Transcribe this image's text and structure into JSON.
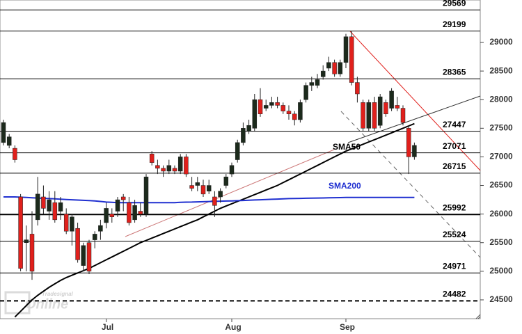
{
  "chart_data": {
    "type": "candlestick",
    "categories": [
      null,
      null,
      null,
      null,
      null,
      null,
      null,
      null,
      null,
      null,
      null,
      null,
      null,
      null,
      null,
      null,
      null,
      null,
      "Jul",
      null,
      null,
      null,
      null,
      null,
      null,
      null,
      null,
      null,
      null,
      null,
      null,
      null,
      null,
      null,
      null,
      null,
      null,
      null,
      null,
      null,
      "Aug",
      null,
      null,
      null,
      null,
      null,
      null,
      null,
      null,
      null,
      null,
      null,
      null,
      null,
      null,
      null,
      null,
      null,
      null,
      null,
      "Sep",
      null,
      null,
      null,
      null,
      null,
      null,
      null,
      null,
      null,
      null,
      null,
      null
    ],
    "open": [
      27250,
      27200,
      27150,
      26300,
      25500,
      25650,
      25900,
      26300,
      26050,
      26200,
      26050,
      26000,
      25700,
      25750,
      25100,
      25500,
      25550,
      25700,
      25850,
      26000,
      26050,
      26300,
      26200,
      25900,
      26050,
      26000,
      27050,
      26850,
      26800,
      26750,
      26800,
      26750,
      27000,
      26500,
      26500,
      26500,
      26400,
      26300,
      26300,
      26500,
      26700,
      26950,
      27250,
      27450,
      27500,
      28000,
      27850,
      27900,
      27950,
      27900,
      27800,
      27750,
      27650,
      28000,
      28250,
      28250,
      28400,
      28550,
      28650,
      28450,
      28650,
      29100,
      28300,
      27950,
      27500,
      27950,
      27550,
      27950,
      27850,
      27900,
      27850,
      27500,
      27000
    ],
    "high": [
      27650,
      27400,
      27200,
      26350,
      25800,
      26050,
      26650,
      26500,
      26400,
      26400,
      26300,
      26100,
      26000,
      25850,
      25500,
      25550,
      25700,
      25900,
      26200,
      26100,
      26300,
      26350,
      26300,
      26250,
      26200,
      26700,
      27100,
      26950,
      26850,
      26950,
      26850,
      27050,
      27050,
      26650,
      26650,
      26600,
      26600,
      26400,
      26450,
      26700,
      26900,
      27300,
      27600,
      27650,
      28100,
      28200,
      28000,
      28050,
      28050,
      27950,
      27900,
      27800,
      28000,
      28300,
      28400,
      28450,
      28600,
      28750,
      28700,
      28700,
      29150,
      29199,
      28400,
      28000,
      28000,
      28050,
      28100,
      28000,
      28200,
      28050,
      27900,
      27550,
      27250
    ],
    "low": [
      27200,
      27150,
      26900,
      25000,
      25000,
      24850,
      25800,
      26000,
      25900,
      25850,
      25900,
      25650,
      25450,
      25150,
      25000,
      24950,
      25400,
      25550,
      25750,
      25850,
      25950,
      26050,
      25800,
      25850,
      25950,
      25950,
      26850,
      26700,
      26650,
      26700,
      26700,
      26700,
      26650,
      26400,
      26400,
      26300,
      26350,
      25950,
      26200,
      26450,
      26650,
      26900,
      27200,
      27400,
      27450,
      27700,
      27800,
      27850,
      27850,
      27750,
      27650,
      27550,
      27600,
      27950,
      28150,
      28200,
      28350,
      28500,
      28400,
      28400,
      28550,
      28250,
      27950,
      27450,
      27450,
      27450,
      27500,
      27700,
      27800,
      27800,
      27550,
      26700,
      26950
    ],
    "close": [
      27600,
      27350,
      26950,
      25050,
      25550,
      25000,
      26350,
      26100,
      26250,
      25900,
      26200,
      25700,
      25950,
      25200,
      25450,
      25000,
      25650,
      25800,
      26100,
      25950,
      26250,
      26250,
      25850,
      26150,
      26000,
      26650,
      26900,
      26800,
      26750,
      26850,
      26750,
      27000,
      26700,
      26450,
      26550,
      26350,
      26500,
      26150,
      26400,
      26650,
      26850,
      27250,
      27500,
      27550,
      28000,
      27750,
      27900,
      27950,
      27900,
      27800,
      27750,
      27650,
      27950,
      28250,
      28300,
      28350,
      28500,
      28650,
      28450,
      28650,
      29100,
      28300,
      28100,
      27500,
      27950,
      27500,
      28050,
      27750,
      28150,
      27850,
      27600,
      27000,
      27200
    ],
    "up_color": "#1c2a1c",
    "down_color": "#e0201c",
    "series": [
      {
        "name": "SMA50",
        "color": "#000000",
        "values": [
          null,
          null,
          24200,
          24300,
          24400,
          24500,
          24580,
          24650,
          24720,
          24780,
          24840,
          24890,
          24930,
          24970,
          25010,
          25050,
          25100,
          25150,
          25200,
          25250,
          25300,
          25350,
          25400,
          25450,
          25500,
          25540,
          25580,
          25620,
          25660,
          25700,
          25740,
          25780,
          25820,
          25860,
          25900,
          25950,
          26000,
          26050,
          26100,
          26140,
          26180,
          26220,
          26260,
          26300,
          26340,
          26380,
          26420,
          26460,
          26500,
          26550,
          26600,
          26650,
          26700,
          26750,
          26800,
          26850,
          26900,
          26950,
          27000,
          27050,
          27100,
          27140,
          27180,
          27220,
          27260,
          27300,
          27340,
          27380,
          27420,
          27460,
          27500,
          27540,
          27580
        ]
      },
      {
        "name": "SMA200",
        "color": "#1f2fd0",
        "values": [
          26300,
          26300,
          26300,
          26295,
          26290,
          26285,
          26280,
          26275,
          26270,
          26265,
          26260,
          26255,
          26250,
          26245,
          26240,
          26235,
          26230,
          26220,
          26210,
          26205,
          26200,
          26200,
          26200,
          26200,
          26200,
          26200,
          26200,
          26200,
          26200,
          26200,
          26200,
          26205,
          26208,
          26210,
          26213,
          26216,
          26219,
          26222,
          26225,
          26228,
          26230,
          26234,
          26238,
          26242,
          26246,
          26250,
          26254,
          26258,
          26262,
          26266,
          26270,
          26272,
          26274,
          26276,
          26278,
          26280,
          26282,
          26284,
          26286,
          26288,
          26290,
          26290,
          26290,
          26290,
          26290,
          26290,
          26290,
          26290,
          26290,
          26290,
          26290,
          26290,
          26290
        ]
      }
    ],
    "levels": [
      29569,
      29199,
      28365,
      27447,
      27071,
      26715,
      25992,
      25524,
      24971
    ],
    "dashed_levels": [
      24482
    ],
    "ylim": [
      24171,
      29742
    ],
    "yticks": [
      24500,
      25000,
      25500,
      26000,
      26500,
      27000,
      27500,
      28000,
      28500,
      29000
    ],
    "watermark": [
      "Tradesignal",
      "Online"
    ]
  }
}
